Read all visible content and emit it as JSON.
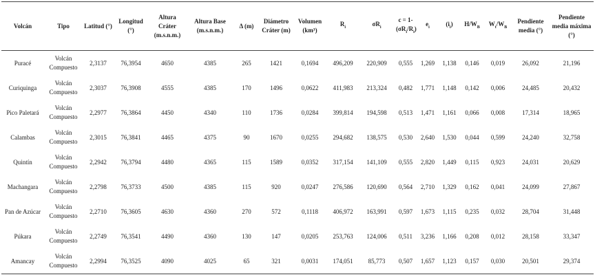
{
  "table": {
    "headers": [
      [
        "Volcán"
      ],
      [
        "Tipo"
      ],
      [
        "Latitud (°)"
      ],
      [
        "Longitud (°)"
      ],
      [
        "Altura Cráter (m.s.n.m.)"
      ],
      [
        "Altura Base (m.s.n.m.)"
      ],
      [
        "Δ (m)"
      ],
      [
        "Diámetro Cráter (m)"
      ],
      [
        "Volumen (km³)"
      ],
      [
        "R",
        "i"
      ],
      [
        "σR",
        "i"
      ],
      [
        "c = 1-(σR",
        "i",
        "/R",
        "i",
        ")"
      ],
      [
        "e",
        "i"
      ],
      [
        "(i",
        "i",
        ")"
      ],
      [
        "H/W",
        "B"
      ],
      [
        "W",
        "t",
        "/W",
        "B"
      ],
      [
        "Pendiente media (°)"
      ],
      [
        "Pendiente media máxima (°)"
      ]
    ],
    "rows": [
      [
        "Puracé",
        "Volcán Compuesto",
        "2,3137",
        "76,3954",
        "4650",
        "4385",
        "265",
        "1421",
        "0,1694",
        "496,209",
        "220,909",
        "0,555",
        "1,269",
        "1,138",
        "0,146",
        "0,019",
        "26,092",
        "21,196"
      ],
      [
        "Curiquinga",
        "Volcán Compuesto",
        "2,3037",
        "76,3908",
        "4555",
        "4385",
        "170",
        "1496",
        "0,0622",
        "411,983",
        "213,324",
        "0,482",
        "1,771",
        "1,148",
        "0,142",
        "0,006",
        "24,485",
        "20,432"
      ],
      [
        "Pico Paletará",
        "Volcán Compuesto",
        "2,2977",
        "76,3864",
        "4450",
        "4340",
        "110",
        "1736",
        "0,0284",
        "399,814",
        "194,598",
        "0,513",
        "1,471",
        "1,161",
        "0,066",
        "0,008",
        "17,314",
        "18,965"
      ],
      [
        "Calambas",
        "Volcán Compuesto",
        "2,3015",
        "76,3841",
        "4465",
        "4375",
        "90",
        "1670",
        "0,0255",
        "294,682",
        "138,575",
        "0,530",
        "2,640",
        "1,530",
        "0,044",
        "0,599",
        "24,240",
        "32,758"
      ],
      [
        "Quintín",
        "Volcán Compuesto",
        "2,2942",
        "76,3794",
        "4480",
        "4365",
        "115",
        "1589",
        "0,0352",
        "317,154",
        "141,109",
        "0,555",
        "2,820",
        "1,449",
        "0,115",
        "0,923",
        "24,031",
        "20,629"
      ],
      [
        "Machangara",
        "Volcán Compuesto",
        "2,2798",
        "76,3733",
        "4500",
        "4385",
        "115",
        "920",
        "0,0247",
        "276,586",
        "120,690",
        "0,564",
        "2,710",
        "1,329",
        "0,162",
        "0,041",
        "24,099",
        "27,867"
      ],
      [
        "Pan de Azúcar",
        "Volcán Compuesto",
        "2,2710",
        "76,3605",
        "4630",
        "4360",
        "270",
        "572",
        "0,1118",
        "406,972",
        "163,991",
        "0,597",
        "1,673",
        "1,115",
        "0,235",
        "0,032",
        "28,704",
        "31,448"
      ],
      [
        "Púkara",
        "Volcán Compuesto",
        "2,2749",
        "76,3541",
        "4490",
        "4360",
        "130",
        "147",
        "0,0205",
        "253,763",
        "124,006",
        "0,511",
        "3,236",
        "1,166",
        "0,208",
        "0,012",
        "28,158",
        "33,347"
      ],
      [
        "Amancay",
        "Volcán Compuesto",
        "2,2994",
        "76,3525",
        "4090",
        "4025",
        "65",
        "321",
        "0,0031",
        "174,051",
        "85,773",
        "0,507",
        "1,657",
        "1,123",
        "0,157",
        "0,030",
        "20,501",
        "29,374"
      ]
    ]
  }
}
